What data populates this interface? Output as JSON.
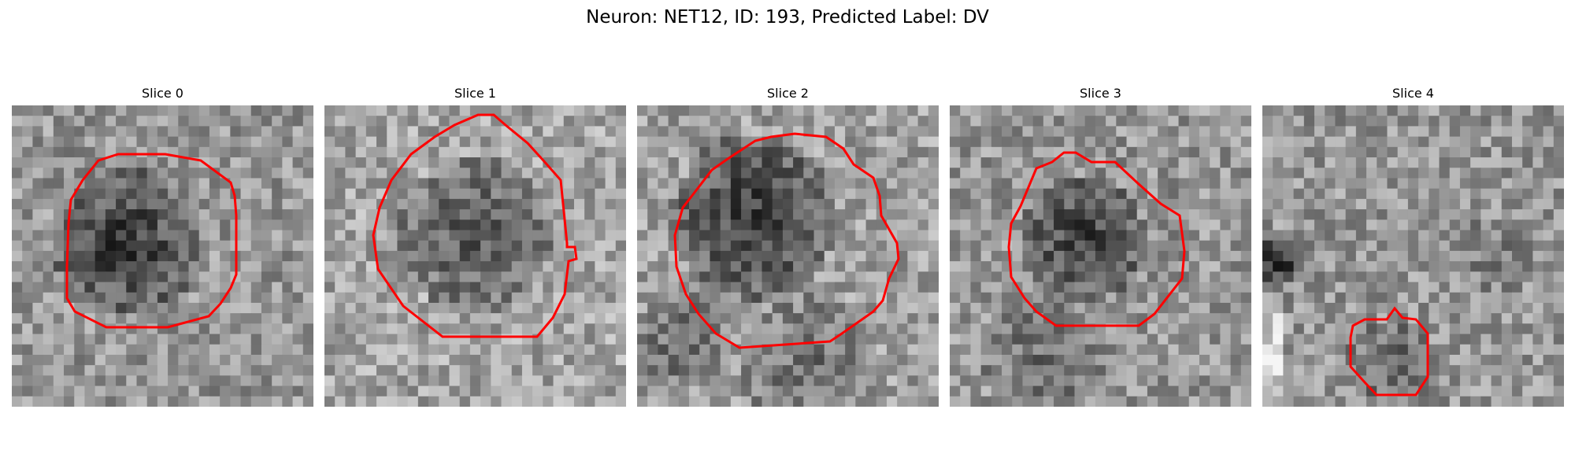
{
  "figure": {
    "title": "Neuron: NET12, ID: 193, Predicted Label: DV"
  },
  "panels": [
    {
      "title": "Slice 0"
    },
    {
      "title": "Slice 1"
    },
    {
      "title": "Slice 2"
    },
    {
      "title": "Slice 3"
    },
    {
      "title": "Slice 4"
    }
  ],
  "colors": {
    "contour": "#ff0000",
    "background": "#ffffff"
  }
}
